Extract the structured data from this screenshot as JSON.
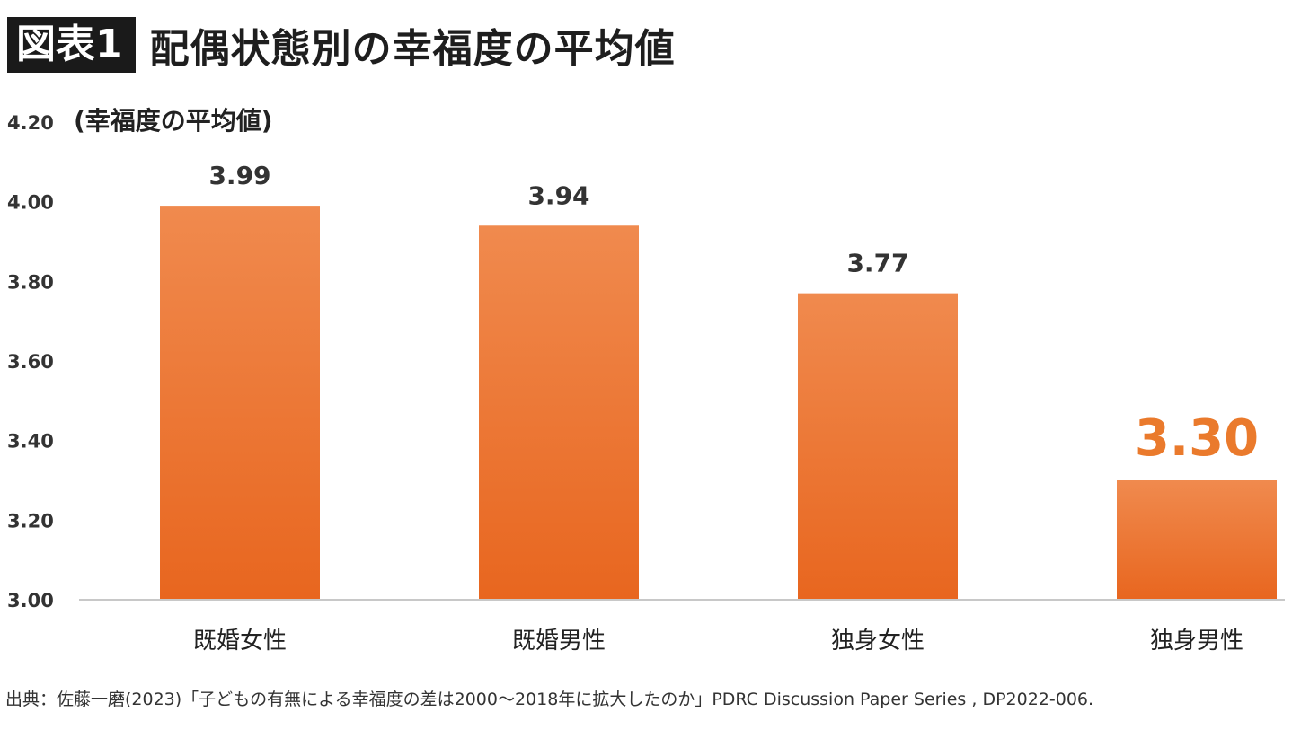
{
  "figure": {
    "badge": "図表1",
    "title": "配偶状態別の幸福度の平均値"
  },
  "chart_data": {
    "type": "bar",
    "title": "配偶状態別の幸福度の平均値",
    "ylabel": "(幸福度の平均値)",
    "xlabel": "",
    "categories": [
      "既婚女性",
      "既婚男性",
      "独身女性",
      "独身男性"
    ],
    "values": [
      3.99,
      3.94,
      3.77,
      3.3
    ],
    "value_labels": [
      "3.99",
      "3.94",
      "3.77",
      "3.30"
    ],
    "highlight_index": 3,
    "ylim": [
      3.0,
      4.2
    ],
    "yticks": [
      "3.00",
      "3.20",
      "3.40",
      "3.60",
      "3.80",
      "4.00",
      "4.20"
    ],
    "grid": false,
    "bar_color_top": "#f08a4e",
    "bar_color_bottom": "#e8661f",
    "highlight_label_color": "#ea7a2c"
  },
  "source": "出典：佐藤一磨(2023)「子どもの有無による幸福度の差は2000～2018年に拡大したのか」PDRC Discussion Paper Series , DP2022-006."
}
